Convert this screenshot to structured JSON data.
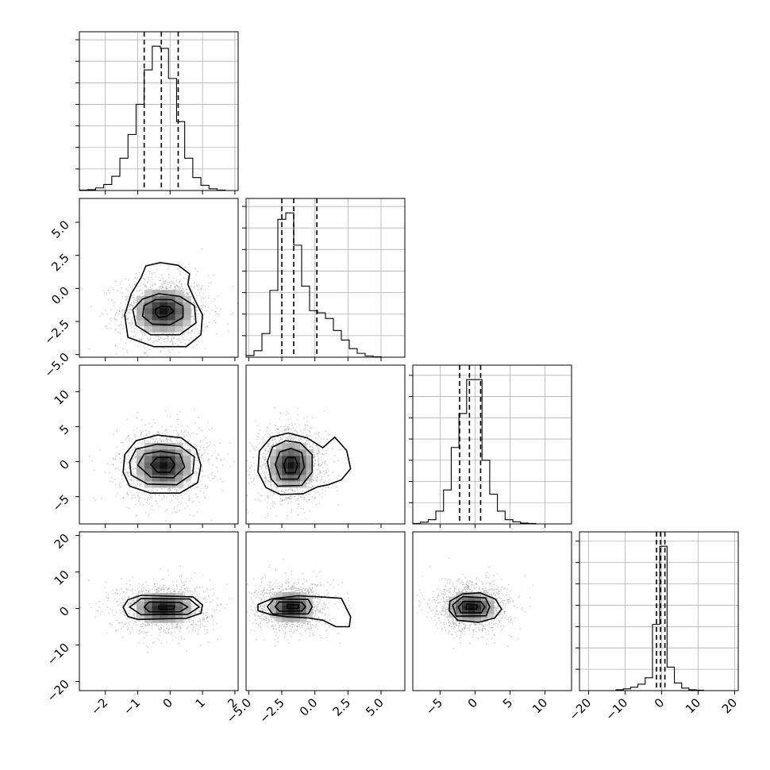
{
  "chart_data": {
    "type": "corner",
    "grid_on": true,
    "params": [
      {
        "range": [
          -2.8,
          2.1
        ],
        "ticks": [
          -2,
          -1,
          0,
          1,
          2
        ],
        "quantiles": [
          -0.8,
          -0.27,
          0.25
        ]
      },
      {
        "range": [
          -5.2,
          6.8
        ],
        "ticks": [
          -5.0,
          -2.5,
          0.0,
          2.5,
          5.0
        ],
        "quantiles": [
          -2.5,
          -1.6,
          0.15
        ]
      },
      {
        "range": [
          -8.9,
          13.8
        ],
        "ticks": [
          -5,
          0,
          5,
          10
        ],
        "quantiles": [
          -2.2,
          -0.8,
          0.8
        ]
      },
      {
        "range": [
          -22.5,
          21.0
        ],
        "ticks": [
          -20,
          -10,
          0,
          10,
          20
        ],
        "quantiles": [
          -1.4,
          -0.3,
          0.9
        ]
      }
    ],
    "tick_labels": [
      [
        "−2",
        "−1",
        "0",
        "1",
        "2"
      ],
      [
        "−5.0",
        "−2.5",
        "0.0",
        "2.5",
        "5.0"
      ],
      [
        "−5",
        "0",
        "5",
        "10"
      ],
      [
        "−20",
        "−10",
        "0",
        "10",
        "20"
      ]
    ],
    "histograms": [
      {
        "bin_edges": [
          -2.8,
          -2.55,
          -2.3,
          -2.05,
          -1.8,
          -1.55,
          -1.3,
          -1.05,
          -0.8,
          -0.55,
          -0.3,
          -0.05,
          0.2,
          0.45,
          0.7,
          0.95,
          1.2,
          1.45,
          1.7,
          1.95,
          2.1
        ],
        "counts": [
          1,
          2,
          6,
          14,
          33,
          75,
          130,
          200,
          280,
          335,
          330,
          260,
          160,
          75,
          30,
          12,
          4,
          1,
          0,
          0
        ]
      },
      {
        "bin_edges": [
          -5.2,
          -4.6,
          -4.0,
          -3.4,
          -2.8,
          -2.2,
          -1.6,
          -1.0,
          -0.4,
          0.2,
          0.8,
          1.4,
          2.0,
          2.6,
          3.2,
          3.8,
          4.4,
          5.0,
          5.6,
          6.2,
          6.8
        ],
        "counts": [
          4,
          15,
          55,
          155,
          320,
          335,
          260,
          165,
          108,
          103,
          90,
          62,
          40,
          20,
          9,
          3,
          1,
          0,
          0,
          0
        ]
      },
      {
        "bin_edges": [
          -8.9,
          -7.8,
          -6.7,
          -5.6,
          -4.5,
          -3.4,
          -2.3,
          -1.2,
          -0.1,
          1.0,
          2.1,
          3.2,
          4.3,
          5.4,
          6.5,
          7.6,
          8.7,
          9.8,
          10.9,
          12.0,
          13.8
        ],
        "counts": [
          1,
          4,
          10,
          30,
          80,
          180,
          260,
          340,
          340,
          150,
          70,
          30,
          10,
          5,
          2,
          1,
          0,
          0,
          0,
          0
        ]
      },
      {
        "bin_edges": [
          -22.5,
          -20.5,
          -18.5,
          -16.5,
          -14.5,
          -12.5,
          -10.5,
          -8.5,
          -6.5,
          -4.5,
          -2.5,
          -0.5,
          1.5,
          3.5,
          5.5,
          7.5,
          9.5,
          11.5,
          13.5,
          15.5,
          17.5,
          19.5,
          21.0
        ],
        "counts": [
          0,
          0,
          0,
          0,
          0,
          2,
          4,
          8,
          15,
          30,
          155,
          338,
          55,
          18,
          6,
          2,
          1,
          0,
          0,
          0,
          0,
          0
        ]
      }
    ],
    "pairs": [
      {
        "row": 1,
        "col": 0,
        "center": [
          -0.2,
          -1.7
        ],
        "sigma": [
          0.68,
          1.3
        ],
        "contours": [
          [
            [
              -0.35,
              -2.2
            ],
            [
              -0.1,
              -2.1
            ],
            [
              0.1,
              -1.75
            ],
            [
              0.0,
              -1.4
            ],
            [
              -0.25,
              -1.35
            ],
            [
              -0.45,
              -1.55
            ],
            [
              -0.45,
              -1.9
            ]
          ],
          [
            [
              -0.55,
              -2.7
            ],
            [
              0.0,
              -2.75
            ],
            [
              0.4,
              -2.2
            ],
            [
              0.4,
              -1.35
            ],
            [
              0.05,
              -0.85
            ],
            [
              -0.45,
              -0.85
            ],
            [
              -0.8,
              -1.3
            ],
            [
              -0.85,
              -2.1
            ]
          ],
          [
            [
              -0.6,
              -3.5
            ],
            [
              0.3,
              -3.5
            ],
            [
              0.8,
              -2.6
            ],
            [
              0.75,
              -1.3
            ],
            [
              0.3,
              -0.6
            ],
            [
              -0.35,
              -0.4
            ],
            [
              -0.85,
              -0.8
            ],
            [
              -1.15,
              -1.6
            ],
            [
              -1.05,
              -2.8
            ]
          ],
          [
            [
              -0.5,
              -4.4
            ],
            [
              0.5,
              -4.4
            ],
            [
              0.95,
              -3.5
            ],
            [
              1.0,
              -2.0
            ],
            [
              0.75,
              -0.8
            ],
            [
              0.55,
              0.3
            ],
            [
              0.6,
              1.1
            ],
            [
              0.25,
              1.75
            ],
            [
              -0.3,
              1.95
            ],
            [
              -0.75,
              1.7
            ],
            [
              -0.9,
              0.8
            ],
            [
              -1.2,
              -0.4
            ],
            [
              -1.4,
              -2.0
            ],
            [
              -1.3,
              -3.7
            ]
          ]
        ]
      },
      {
        "row": 2,
        "col": 0,
        "center": [
          -0.2,
          -0.5
        ],
        "sigma": [
          0.68,
          2.6
        ],
        "contours": [
          [
            [
              -0.4,
              -1.5
            ],
            [
              0.0,
              -1.5
            ],
            [
              0.15,
              -0.4
            ],
            [
              0.0,
              0.6
            ],
            [
              -0.4,
              0.6
            ],
            [
              -0.6,
              -0.4
            ]
          ],
          [
            [
              -0.6,
              -2.2
            ],
            [
              0.1,
              -2.3
            ],
            [
              0.45,
              -0.8
            ],
            [
              0.3,
              1.1
            ],
            [
              -0.3,
              1.5
            ],
            [
              -0.8,
              1.1
            ],
            [
              -1.0,
              -0.5
            ]
          ],
          [
            [
              -0.7,
              -3.2
            ],
            [
              0.2,
              -3.3
            ],
            [
              0.7,
              -1.7
            ],
            [
              0.75,
              0.7
            ],
            [
              0.3,
              2.2
            ],
            [
              -0.4,
              2.5
            ],
            [
              -1.05,
              1.8
            ],
            [
              -1.25,
              0.0
            ],
            [
              -1.2,
              -1.9
            ]
          ],
          [
            [
              -0.6,
              -4.5
            ],
            [
              0.3,
              -4.5
            ],
            [
              0.85,
              -3.0
            ],
            [
              0.95,
              -0.5
            ],
            [
              0.8,
              1.8
            ],
            [
              0.35,
              3.4
            ],
            [
              -0.4,
              3.8
            ],
            [
              -1.05,
              3.0
            ],
            [
              -1.4,
              1.0
            ],
            [
              -1.45,
              -1.5
            ],
            [
              -1.25,
              -3.5
            ]
          ]
        ]
      },
      {
        "row": 2,
        "col": 1,
        "center": [
          -1.8,
          -0.5
        ],
        "sigma": [
          1.3,
          2.6
        ],
        "contours": [
          [
            [
              -2.2,
              -1.6
            ],
            [
              -1.5,
              -1.6
            ],
            [
              -1.3,
              -0.4
            ],
            [
              -1.5,
              0.6
            ],
            [
              -2.1,
              0.6
            ],
            [
              -2.35,
              -0.4
            ]
          ],
          [
            [
              -2.6,
              -2.5
            ],
            [
              -1.3,
              -2.5
            ],
            [
              -0.8,
              -0.8
            ],
            [
              -1.0,
              1.3
            ],
            [
              -1.8,
              1.9
            ],
            [
              -2.65,
              1.4
            ],
            [
              -3.0,
              -0.4
            ]
          ],
          [
            [
              -2.8,
              -3.5
            ],
            [
              -1.0,
              -3.4
            ],
            [
              -0.2,
              -1.5
            ],
            [
              -0.2,
              1.0
            ],
            [
              -1.1,
              2.7
            ],
            [
              -2.2,
              3.0
            ],
            [
              -3.2,
              2.1
            ],
            [
              -3.6,
              0.0
            ],
            [
              -3.3,
              -2.5
            ]
          ],
          [
            [
              -2.6,
              -4.7
            ],
            [
              -0.9,
              -4.6
            ],
            [
              0.2,
              -3.6
            ],
            [
              1.0,
              -3.3
            ],
            [
              2.0,
              -2.6
            ],
            [
              2.7,
              -1.0
            ],
            [
              2.4,
              1.6
            ],
            [
              1.5,
              3.5
            ],
            [
              0.6,
              2.0
            ],
            [
              -0.6,
              3.4
            ],
            [
              -2.0,
              4.1
            ],
            [
              -3.3,
              3.5
            ],
            [
              -4.2,
              1.5
            ],
            [
              -4.3,
              -1.5
            ],
            [
              -3.7,
              -3.7
            ]
          ]
        ]
      },
      {
        "row": 3,
        "col": 0,
        "center": [
          -0.2,
          0.2
        ],
        "sigma": [
          0.68,
          3.3
        ],
        "contours": [
          [
            [
              -0.35,
              -0.2
            ],
            [
              0.1,
              -0.2
            ],
            [
              0.15,
              0.7
            ],
            [
              -0.35,
              0.7
            ]
          ],
          [
            [
              -0.65,
              -0.9
            ],
            [
              0.3,
              -0.9
            ],
            [
              0.55,
              0.4
            ],
            [
              0.3,
              1.7
            ],
            [
              -0.65,
              1.8
            ],
            [
              -0.8,
              0.4
            ]
          ],
          [
            [
              -0.9,
              -1.7
            ],
            [
              0.55,
              -1.6
            ],
            [
              0.9,
              0.4
            ],
            [
              0.6,
              2.6
            ],
            [
              -0.9,
              2.7
            ],
            [
              -1.25,
              0.4
            ]
          ],
          [
            [
              -1.0,
              -3.0
            ],
            [
              0.5,
              -2.7
            ],
            [
              0.95,
              -1.3
            ],
            [
              1.0,
              1.0
            ],
            [
              0.7,
              3.2
            ],
            [
              -0.9,
              3.6
            ],
            [
              -1.3,
              2.4
            ],
            [
              -1.45,
              0.3
            ],
            [
              -1.3,
              -2.2
            ]
          ]
        ]
      },
      {
        "row": 3,
        "col": 1,
        "center": [
          -1.8,
          0.4
        ],
        "sigma": [
          1.3,
          3.3
        ],
        "contours": [
          [
            [
              -2.1,
              0.0
            ],
            [
              -1.3,
              0.0
            ],
            [
              -1.2,
              1.0
            ],
            [
              -2.1,
              1.1
            ]
          ],
          [
            [
              -2.7,
              -0.7
            ],
            [
              -1.0,
              -0.7
            ],
            [
              -0.7,
              0.5
            ],
            [
              -1.0,
              1.7
            ],
            [
              -2.7,
              1.8
            ],
            [
              -3.0,
              0.5
            ]
          ],
          [
            [
              -3.2,
              -1.5
            ],
            [
              -0.5,
              -1.5
            ],
            [
              -0.2,
              0.5
            ],
            [
              -0.5,
              2.5
            ],
            [
              -3.1,
              2.6
            ],
            [
              -3.6,
              0.5
            ]
          ],
          [
            [
              -3.3,
              -1.7
            ],
            [
              -2.0,
              -2.3
            ],
            [
              -0.5,
              -2.6
            ],
            [
              0.6,
              -3.2
            ],
            [
              1.6,
              -5.0
            ],
            [
              2.6,
              -5.0
            ],
            [
              2.7,
              -2.3
            ],
            [
              2.0,
              2.8
            ],
            [
              0.3,
              3.2
            ],
            [
              -1.3,
              3.5
            ],
            [
              -3.3,
              2.6
            ],
            [
              -4.3,
              1.1
            ],
            [
              -4.3,
              -0.6
            ]
          ]
        ]
      },
      {
        "row": 3,
        "col": 2,
        "center": [
          -0.5,
          0.4
        ],
        "sigma": [
          2.6,
          3.3
        ],
        "contours": [
          [
            [
              -1.3,
              -0.2
            ],
            [
              0.2,
              -0.2
            ],
            [
              0.3,
              1.0
            ],
            [
              -1.2,
              1.2
            ]
          ],
          [
            [
              -2.0,
              -1.2
            ],
            [
              0.9,
              -1.2
            ],
            [
              1.4,
              0.5
            ],
            [
              0.8,
              1.9
            ],
            [
              -1.6,
              2.0
            ],
            [
              -2.4,
              0.4
            ]
          ],
          [
            [
              -2.7,
              -2.1
            ],
            [
              1.6,
              -2.0
            ],
            [
              2.1,
              0.5
            ],
            [
              1.5,
              2.9
            ],
            [
              -1.7,
              3.3
            ],
            [
              -3.2,
              1.0
            ]
          ],
          [
            [
              -2.5,
              -3.2
            ],
            [
              0.5,
              -3.8
            ],
            [
              2.8,
              -2.6
            ],
            [
              3.8,
              -0.2
            ],
            [
              2.9,
              2.6
            ],
            [
              0.7,
              4.3
            ],
            [
              -1.8,
              4.0
            ],
            [
              -3.6,
              2.0
            ],
            [
              -3.7,
              -0.6
            ]
          ]
        ]
      }
    ]
  }
}
